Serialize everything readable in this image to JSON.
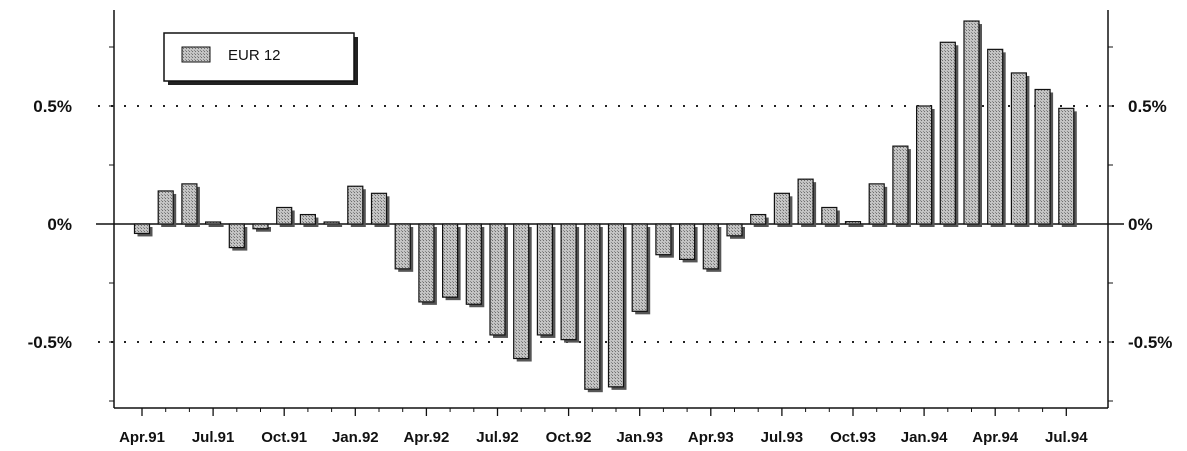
{
  "chart_data": {
    "type": "bar",
    "title": "",
    "xlabel": "",
    "ylabel": "",
    "ylim": [
      -0.8,
      0.9
    ],
    "grid": "dotted lines at 0.5% and -0.5%",
    "legend_placement": "top-left",
    "x_tick_labels": [
      "Apr.91",
      "Jul.91",
      "Oct.91",
      "Jan.92",
      "Apr.92",
      "Jul.92",
      "Oct.92",
      "Jan.93",
      "Apr.93",
      "Jul.93",
      "Oct.93",
      "Jan.94",
      "Apr.94",
      "Jul.94"
    ],
    "y_ticks": [
      {
        "value": 0.5,
        "label": "0.5%"
      },
      {
        "value": 0,
        "label": "0%"
      },
      {
        "value": -0.5,
        "label": "-0.5%"
      }
    ],
    "series": [
      {
        "name": "EUR 12",
        "values": [
          -0.04,
          0.14,
          0.17,
          0.0,
          -0.1,
          -0.02,
          0.07,
          0.04,
          0.0,
          0.16,
          0.13,
          -0.19,
          -0.33,
          -0.31,
          -0.34,
          -0.47,
          -0.57,
          -0.47,
          -0.49,
          -0.7,
          -0.69,
          -0.37,
          -0.13,
          -0.15,
          -0.19,
          -0.05,
          0.04,
          0.13,
          0.19,
          0.07,
          0.01,
          0.17,
          0.33,
          0.5,
          0.77,
          0.86,
          0.74,
          0.64,
          0.57,
          0.49
        ]
      }
    ],
    "colors": {
      "bar_fill": "#b8b8b8",
      "bar_stroke": "#111111",
      "bar_shadow": "#555555"
    }
  }
}
